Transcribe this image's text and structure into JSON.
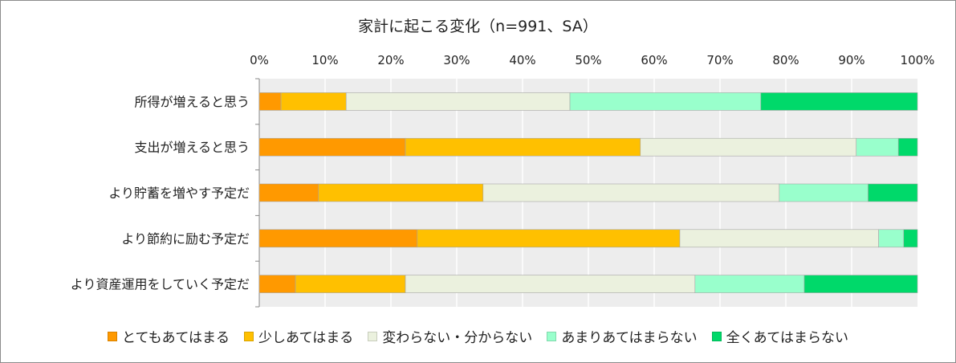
{
  "chart_data": {
    "type": "bar",
    "orientation": "horizontal",
    "stacked": true,
    "title": "家計に起こる変化（n=991、SA）",
    "x_ticks": [
      "0%",
      "10%",
      "20%",
      "30%",
      "40%",
      "50%",
      "60%",
      "70%",
      "80%",
      "90%",
      "100%"
    ],
    "xlim": [
      0,
      100
    ],
    "grid": true,
    "legend_position": "bottom",
    "categories": [
      "所得が増えると思う",
      "支出が増えると思う",
      "より貯蓄を増やす予定だ",
      "より節約に励む予定だ",
      "より資産運用をしていく予定だ"
    ],
    "series": [
      {
        "name": "とてもあてはまる",
        "color": "#FF9900",
        "values": [
          3.3,
          22.2,
          9.0,
          24.0,
          5.5
        ]
      },
      {
        "name": "少しあてはまる",
        "color": "#FFC000",
        "values": [
          9.9,
          35.7,
          25.0,
          39.9,
          16.7
        ]
      },
      {
        "name": "変わらない・分からない",
        "color": "#EBF1DE",
        "values": [
          34.0,
          32.8,
          45.0,
          30.2,
          44.0
        ]
      },
      {
        "name": "あまりあてはまらない",
        "color": "#99FFCC",
        "values": [
          29.0,
          6.4,
          13.5,
          3.8,
          16.6
        ]
      },
      {
        "name": "全くあてはまらない",
        "color": "#00D96A",
        "values": [
          23.8,
          2.9,
          7.5,
          2.1,
          17.2
        ]
      }
    ]
  }
}
